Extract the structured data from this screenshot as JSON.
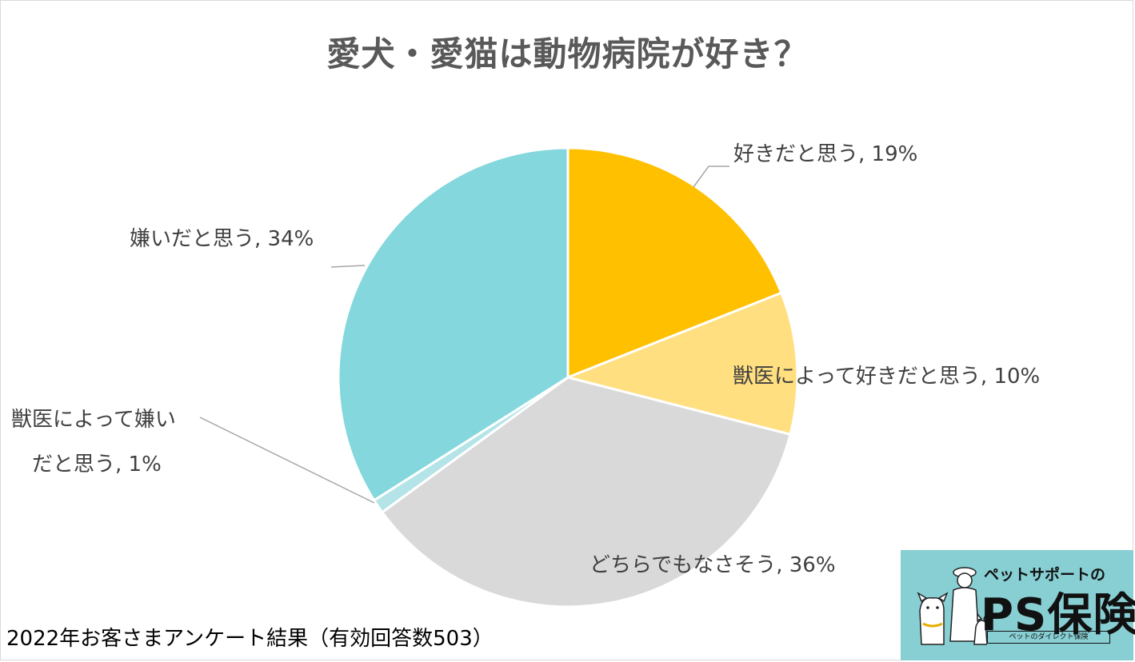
{
  "chart_data": {
    "type": "pie",
    "title": "愛犬・愛猫は動物病院が好き？",
    "start_angle": "12 o'clock, clockwise",
    "slices": [
      {
        "label": "好きだと思う",
        "value": 19,
        "display": "好きだと思う, 19%",
        "color": "#ffc000"
      },
      {
        "label": "獣医によって好きだと思う",
        "value": 10,
        "display": "獣医によって好きだと思う, 10%",
        "color": "#ffdf80"
      },
      {
        "label": "どちらでもなさそう",
        "value": 36,
        "display": "どちらでもなさそう, 36%",
        "color": "#d9d9d9"
      },
      {
        "label": "獣医によって嫌いだと思う",
        "value": 1,
        "display_line1": "獣医によって嫌い",
        "display_line2": "だと思う, 1%",
        "color": "#b4e4e7"
      },
      {
        "label": "嫌いだと思う",
        "value": 34,
        "display": "嫌いだと思う, 34%",
        "color": "#84d7dc"
      }
    ]
  },
  "footer": "2022年お客さまアンケート結果（有効回答数503）",
  "logo": {
    "tagline": "ペットサポートの",
    "name": "PS保険",
    "subtitle": "ペットのダイレクト保険",
    "background": "#88cfd3"
  }
}
